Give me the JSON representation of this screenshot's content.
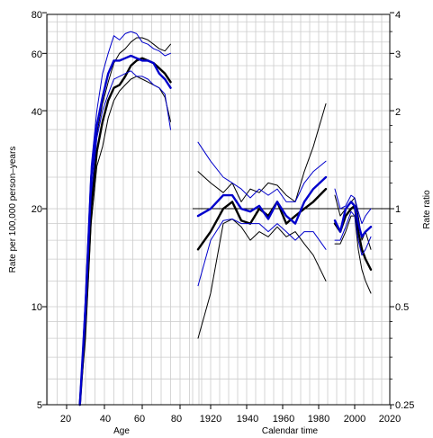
{
  "chart_data": {
    "type": "line",
    "title": "",
    "ylabel": "Rate per 100,000 person–years",
    "ylabel_right": "Rate ratio",
    "xlabel_age": "Age",
    "xlabel_calendar": "Calendar time",
    "x_ticks": [
      "20",
      "40",
      "60",
      "80",
      "1920",
      "1940",
      "1960",
      "1980",
      "2000",
      "2020"
    ],
    "y_ticks_left": [
      "5",
      "10",
      "20",
      "40",
      "60",
      "80"
    ],
    "y_ticks_right": [
      "0.25",
      "0.5",
      "1",
      "2",
      "3",
      "4"
    ],
    "scale": "log",
    "grid": true,
    "reference_line": 1,
    "colors": {
      "black": "#000000",
      "blue": "#0000cc",
      "grid": "#cccccc"
    },
    "panels": {
      "age": {
        "xlim": [
          10,
          90
        ],
        "series": [
          {
            "color": "black",
            "role": "estimate",
            "x": [
              27,
              30,
              33,
              36,
              39,
              42,
              45,
              48,
              51,
              54,
              57,
              60,
              63,
              66,
              69,
              72,
              75
            ],
            "y": [
              4,
              9,
              20,
              30,
              37,
              43,
              47,
              48,
              51,
              55,
              57,
              58,
              57,
              56,
              54,
              52,
              49
            ]
          },
          {
            "color": "black",
            "role": "ci-lower",
            "x": [
              27,
              30,
              33,
              36,
              39,
              42,
              45,
              48,
              51,
              54,
              57,
              60,
              63,
              66,
              69,
              72,
              75
            ],
            "y": [
              3.5,
              8,
              18,
              27,
              31,
              38,
              43,
              46,
              48,
              50,
              51,
              50,
              49,
              48,
              47,
              44,
              37
            ]
          },
          {
            "color": "black",
            "role": "ci-upper",
            "x": [
              27,
              30,
              33,
              36,
              39,
              42,
              45,
              48,
              51,
              54,
              57,
              60,
              63,
              66,
              69,
              72,
              75
            ],
            "y": [
              4.4,
              10,
              22,
              34,
              42,
              49,
              56,
              60,
              62,
              65,
              67,
              67,
              66,
              64,
              62,
              61,
              64
            ]
          },
          {
            "color": "blue",
            "role": "estimate",
            "x": [
              27,
              30,
              33,
              36,
              39,
              42,
              45,
              48,
              51,
              54,
              57,
              60,
              63,
              66,
              69,
              72,
              75
            ],
            "y": [
              4,
              10,
              25,
              36,
              44,
              52,
              57,
              57,
              58,
              59,
              58,
              57,
              57,
              56,
              52,
              50,
              47
            ]
          },
          {
            "color": "blue",
            "role": "ci-lower",
            "x": [
              27,
              30,
              33,
              36,
              39,
              42,
              45,
              48,
              51,
              54,
              57,
              60,
              63,
              66,
              69,
              72,
              75
            ],
            "y": [
              3.6,
              9,
              22,
              33,
              40,
              45,
              50,
              51,
              52,
              53,
              51,
              51,
              50,
              48,
              47,
              45,
              35
            ]
          },
          {
            "color": "blue",
            "role": "ci-upper",
            "x": [
              27,
              30,
              33,
              36,
              39,
              42,
              45,
              48,
              51,
              54,
              57,
              60,
              63,
              66,
              69,
              72,
              75
            ],
            "y": [
              4.5,
              11,
              27,
              40,
              52,
              60,
              68,
              66,
              69,
              70,
              69,
              65,
              64,
              62,
              61,
              59,
              60
            ]
          }
        ]
      },
      "period": {
        "xlim": [
          1910,
          1987
        ],
        "series": [
          {
            "color": "black",
            "role": "estimate",
            "x": [
              1913,
              1920,
              1927,
              1932,
              1937,
              1942,
              1947,
              1952,
              1957,
              1962,
              1967,
              1972,
              1977,
              1984
            ],
            "y": [
              0.75,
              0.85,
              1.0,
              1.05,
              0.92,
              0.9,
              1.0,
              0.95,
              1.05,
              0.9,
              0.95,
              1.0,
              1.05,
              1.15
            ]
          },
          {
            "color": "black",
            "role": "ci-lower",
            "x": [
              1913,
              1920,
              1927,
              1932,
              1937,
              1942,
              1947,
              1952,
              1957,
              1962,
              1967,
              1972,
              1977,
              1984
            ],
            "y": [
              0.4,
              0.55,
              0.9,
              0.93,
              0.88,
              0.8,
              0.85,
              0.82,
              0.88,
              0.82,
              0.85,
              0.78,
              0.72,
              0.6
            ]
          },
          {
            "color": "black",
            "role": "ci-upper",
            "x": [
              1913,
              1920,
              1927,
              1932,
              1937,
              1942,
              1947,
              1952,
              1957,
              1962,
              1967,
              1972,
              1977,
              1984
            ],
            "y": [
              1.3,
              1.2,
              1.12,
              1.2,
              1.05,
              1.15,
              1.12,
              1.2,
              1.18,
              1.1,
              1.05,
              1.3,
              1.55,
              2.1
            ]
          },
          {
            "color": "blue",
            "role": "estimate",
            "x": [
              1913,
              1920,
              1927,
              1932,
              1937,
              1942,
              1947,
              1952,
              1957,
              1962,
              1967,
              1972,
              1977,
              1984
            ],
            "y": [
              0.95,
              1.0,
              1.1,
              1.1,
              1.0,
              0.98,
              1.02,
              0.93,
              1.05,
              0.95,
              0.9,
              1.05,
              1.15,
              1.25
            ]
          },
          {
            "color": "blue",
            "role": "ci-lower",
            "x": [
              1913,
              1920,
              1927,
              1932,
              1937,
              1942,
              1947,
              1952,
              1957,
              1962,
              1967,
              1972,
              1977,
              1984
            ],
            "y": [
              0.58,
              0.8,
              0.92,
              0.93,
              0.9,
              0.9,
              0.9,
              0.85,
              0.9,
              0.85,
              0.8,
              0.85,
              0.85,
              0.75
            ]
          },
          {
            "color": "blue",
            "role": "ci-upper",
            "x": [
              1913,
              1920,
              1927,
              1932,
              1937,
              1942,
              1947,
              1952,
              1957,
              1962,
              1967,
              1972,
              1977,
              1984
            ],
            "y": [
              1.6,
              1.4,
              1.25,
              1.2,
              1.15,
              1.08,
              1.15,
              1.1,
              1.15,
              1.05,
              1.05,
              1.2,
              1.3,
              1.4
            ]
          }
        ]
      },
      "cohort": {
        "xlim": [
          1987,
          2010
        ],
        "series": [
          {
            "color": "black",
            "role": "estimate",
            "x": [
              1989,
              1992,
              1995,
              1998,
              2000,
              2002,
              2004,
              2006,
              2009
            ],
            "y": [
              0.9,
              0.85,
              0.95,
              1.0,
              1.02,
              0.85,
              0.75,
              0.7,
              0.65
            ]
          },
          {
            "color": "black",
            "role": "ci-lower",
            "x": [
              1989,
              1992,
              1995,
              1998,
              2000,
              2002,
              2004,
              2006,
              2009
            ],
            "y": [
              0.78,
              0.78,
              0.85,
              0.95,
              0.95,
              0.75,
              0.65,
              0.6,
              0.55
            ]
          },
          {
            "color": "black",
            "role": "ci-upper",
            "x": [
              1989,
              1992,
              1995,
              1998,
              2000,
              2002,
              2004,
              2006,
              2009
            ],
            "y": [
              1.1,
              0.95,
              1.0,
              1.05,
              1.08,
              0.95,
              0.8,
              0.85,
              0.75
            ]
          },
          {
            "color": "blue",
            "role": "estimate",
            "x": [
              1989,
              1992,
              1995,
              1998,
              2000,
              2002,
              2004,
              2006,
              2009
            ],
            "y": [
              0.92,
              0.85,
              1.0,
              1.05,
              1.02,
              0.9,
              0.82,
              0.85,
              0.88
            ]
          },
          {
            "color": "blue",
            "role": "ci-lower",
            "x": [
              1989,
              1992,
              1995,
              1998,
              2000,
              2002,
              2004,
              2006,
              2009
            ],
            "y": [
              0.8,
              0.8,
              0.88,
              0.98,
              0.95,
              0.8,
              0.72,
              0.75,
              0.82
            ]
          },
          {
            "color": "blue",
            "role": "ci-upper",
            "x": [
              1989,
              1992,
              1995,
              1998,
              2000,
              2002,
              2004,
              2006,
              2009
            ],
            "y": [
              1.15,
              1.0,
              1.02,
              1.1,
              1.08,
              0.98,
              0.9,
              0.95,
              1.0
            ]
          }
        ]
      }
    }
  }
}
